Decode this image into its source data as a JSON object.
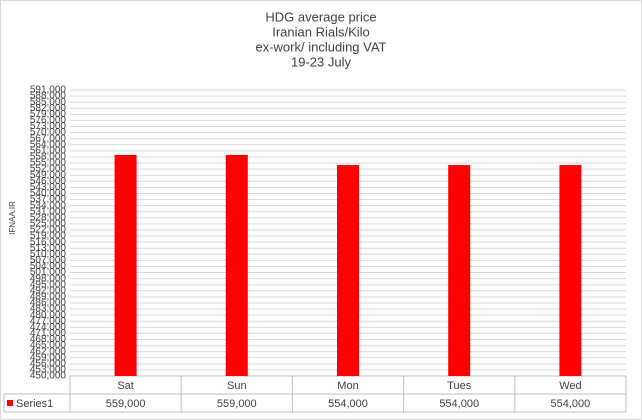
{
  "chart_data": {
    "type": "bar",
    "title": [
      "HDG average  price",
      "Iranian  Rials/Kilo",
      "ex-work/ including VAT",
      "19-23  July"
    ],
    "watermark": "IFNAA.IR",
    "categories": [
      "Sat",
      "Sun",
      "Mon",
      "Tues",
      "Wed"
    ],
    "series": [
      {
        "name": "Series1",
        "color": "#ff0000",
        "values": [
          559000,
          559000,
          554000,
          554000,
          554000
        ],
        "value_labels": [
          "559,000",
          "559,000",
          "554,000",
          "554,000",
          "554,000"
        ]
      }
    ],
    "ylim": [
      450000,
      591000
    ],
    "yticks": [
      {
        "value": 450000,
        "label": "450,000"
      },
      {
        "value": 453000,
        "label": "453,000"
      },
      {
        "value": 456000,
        "label": "456,000"
      },
      {
        "value": 459000,
        "label": "459,000"
      },
      {
        "value": 462000,
        "label": "462,000"
      },
      {
        "value": 465000,
        "label": "465,000"
      },
      {
        "value": 468000,
        "label": "468,000"
      },
      {
        "value": 471000,
        "label": "471,000"
      },
      {
        "value": 474000,
        "label": "474,000"
      },
      {
        "value": 477000,
        "label": "477,000"
      },
      {
        "value": 480000,
        "label": "480,000"
      },
      {
        "value": 483000,
        "label": "483,000"
      },
      {
        "value": 486000,
        "label": "486,000"
      },
      {
        "value": 489000,
        "label": "489,000"
      },
      {
        "value": 492000,
        "label": "492,000"
      },
      {
        "value": 495000,
        "label": "495,000"
      },
      {
        "value": 498000,
        "label": "498,000"
      },
      {
        "value": 501000,
        "label": "501,000"
      },
      {
        "value": 504000,
        "label": "504,000"
      },
      {
        "value": 507000,
        "label": "507,000"
      },
      {
        "value": 510000,
        "label": "510,000"
      },
      {
        "value": 513000,
        "label": "513,000"
      },
      {
        "value": 516000,
        "label": "516,000"
      },
      {
        "value": 519000,
        "label": "519,000"
      },
      {
        "value": 522000,
        "label": "522,000"
      },
      {
        "value": 525000,
        "label": "525,000"
      },
      {
        "value": 528000,
        "label": "528,000"
      },
      {
        "value": 531000,
        "label": "531,000"
      },
      {
        "value": 534000,
        "label": "534,000"
      },
      {
        "value": 537000,
        "label": "537,000"
      },
      {
        "value": 540000,
        "label": "540,000"
      },
      {
        "value": 543000,
        "label": "543,000"
      },
      {
        "value": 546000,
        "label": "546,000"
      },
      {
        "value": 549000,
        "label": "549,000"
      },
      {
        "value": 552000,
        "label": "552,000"
      },
      {
        "value": 555000,
        "label": "555,000"
      },
      {
        "value": 558000,
        "label": "558,000"
      },
      {
        "value": 561000,
        "label": "561,000"
      },
      {
        "value": 564000,
        "label": "564,000"
      },
      {
        "value": 567000,
        "label": "567,000"
      },
      {
        "value": 570000,
        "label": "570,000"
      },
      {
        "value": 573000,
        "label": "573,000"
      },
      {
        "value": 576000,
        "label": "576,000"
      },
      {
        "value": 579000,
        "label": "579,000"
      },
      {
        "value": 582000,
        "label": "582,000"
      },
      {
        "value": 585000,
        "label": "585,000"
      },
      {
        "value": 588000,
        "label": "588,000"
      },
      {
        "value": 591000,
        "label": "591,000"
      }
    ],
    "grid": true
  }
}
